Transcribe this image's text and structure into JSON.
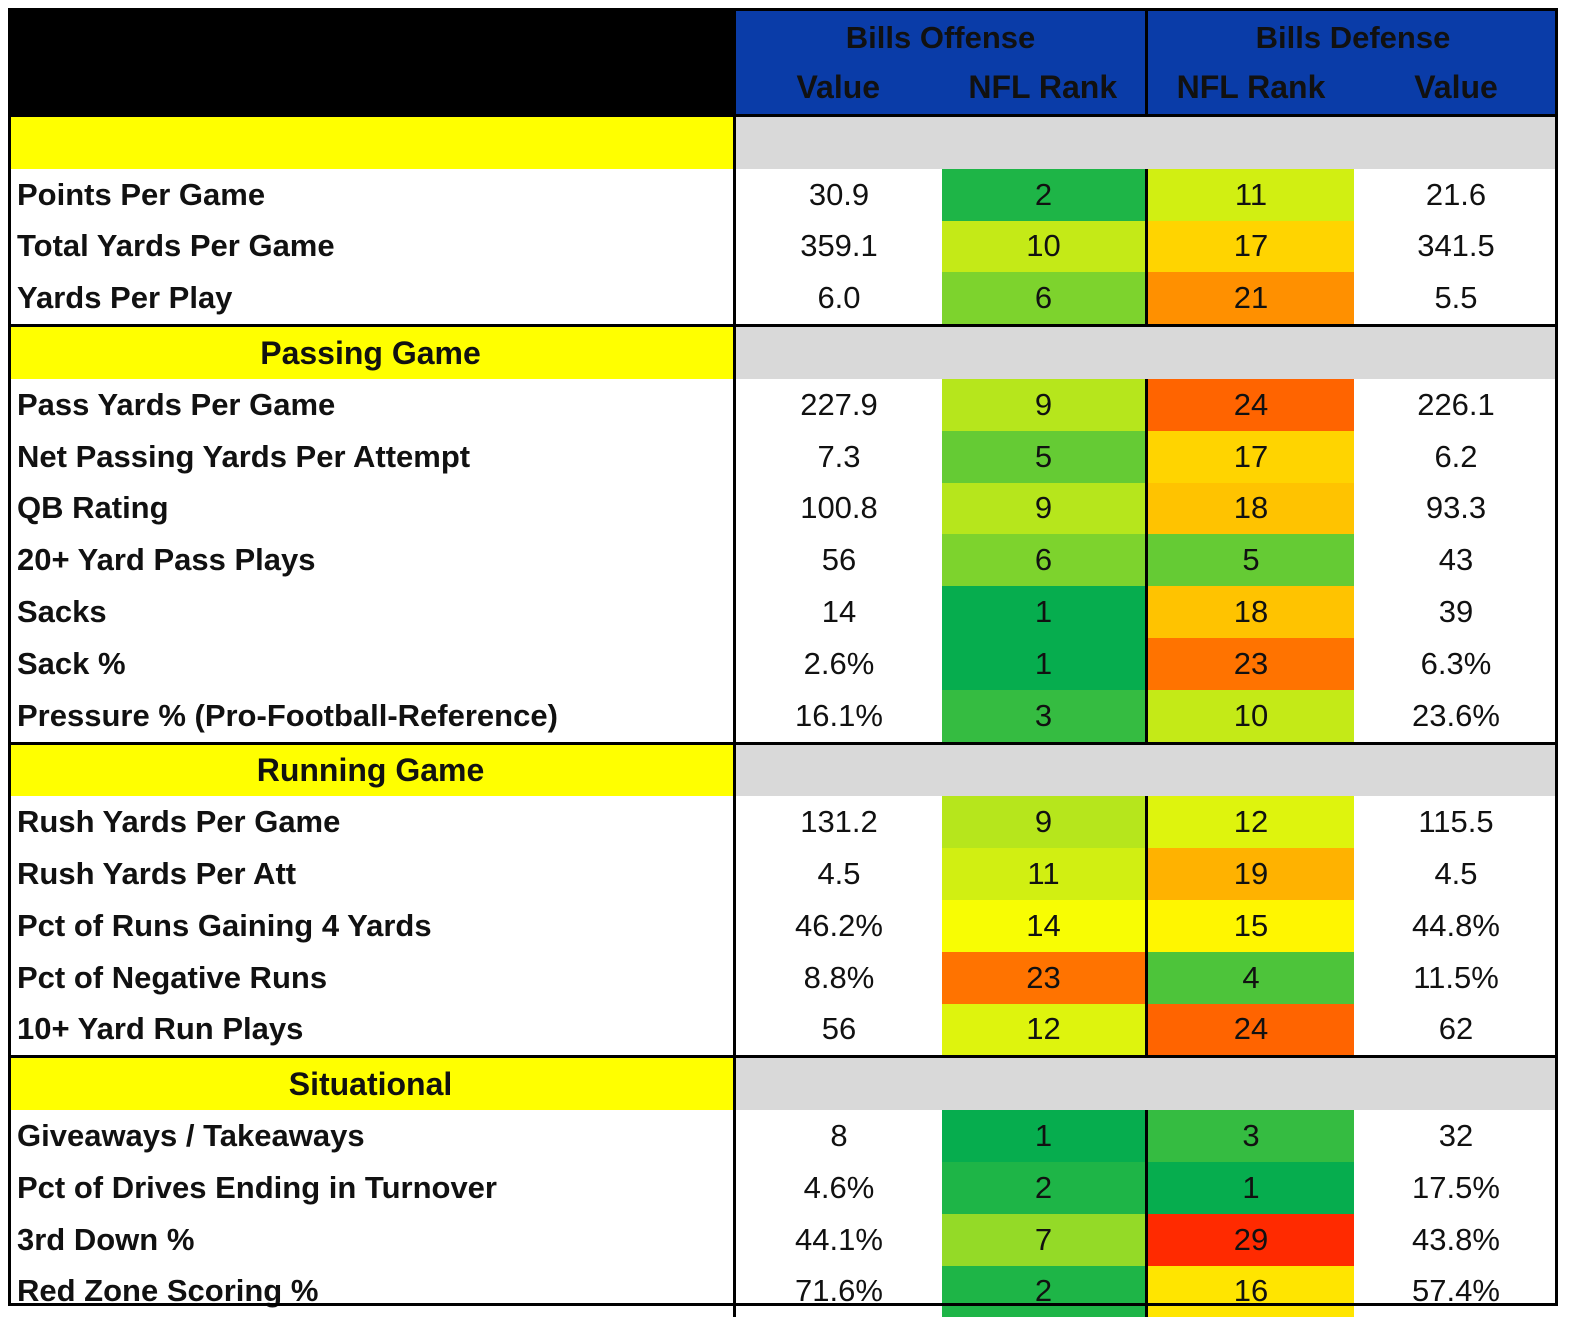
{
  "chart_data": {
    "type": "table",
    "title": "",
    "groups": [
      {
        "name": "Bills Offense",
        "columns": [
          "Value",
          "NFL Rank"
        ]
      },
      {
        "name": "Bills Defense",
        "columns": [
          "NFL Rank",
          "Value"
        ]
      }
    ],
    "sections": [
      {
        "name": "",
        "rows": [
          {
            "label": "Points Per Game",
            "off_value": "30.9",
            "off_rank": 2,
            "def_rank": 11,
            "def_value": "21.6"
          },
          {
            "label": "Total Yards Per Game",
            "off_value": "359.1",
            "off_rank": 10,
            "def_rank": 17,
            "def_value": "341.5"
          },
          {
            "label": "Yards Per Play",
            "off_value": "6.0",
            "off_rank": 6,
            "def_rank": 21,
            "def_value": "5.5"
          }
        ]
      },
      {
        "name": "Passing Game",
        "rows": [
          {
            "label": "Pass Yards Per Game",
            "off_value": "227.9",
            "off_rank": 9,
            "def_rank": 24,
            "def_value": "226.1"
          },
          {
            "label": "Net Passing Yards Per Attempt",
            "off_value": "7.3",
            "off_rank": 5,
            "def_rank": 17,
            "def_value": "6.2"
          },
          {
            "label": "QB Rating",
            "off_value": "100.8",
            "off_rank": 9,
            "def_rank": 18,
            "def_value": "93.3"
          },
          {
            "label": "20+ Yard Pass Plays",
            "off_value": "56",
            "off_rank": 6,
            "def_rank": 5,
            "def_value": "43"
          },
          {
            "label": "Sacks",
            "off_value": "14",
            "off_rank": 1,
            "def_rank": 18,
            "def_value": "39"
          },
          {
            "label": "Sack %",
            "off_value": "2.6%",
            "off_rank": 1,
            "def_rank": 23,
            "def_value": "6.3%"
          },
          {
            "label": "Pressure % (Pro-Football-Reference)",
            "off_value": "16.1%",
            "off_rank": 3,
            "def_rank": 10,
            "def_value": "23.6%"
          }
        ]
      },
      {
        "name": "Running Game",
        "rows": [
          {
            "label": "Rush Yards Per Game",
            "off_value": "131.2",
            "off_rank": 9,
            "def_rank": 12,
            "def_value": "115.5"
          },
          {
            "label": "Rush Yards Per Att",
            "off_value": "4.5",
            "off_rank": 11,
            "def_rank": 19,
            "def_value": "4.5"
          },
          {
            "label": "Pct of Runs Gaining 4 Yards",
            "off_value": "46.2%",
            "off_rank": 14,
            "def_rank": 15,
            "def_value": "44.8%"
          },
          {
            "label": "Pct of Negative Runs",
            "off_value": "8.8%",
            "off_rank": 23,
            "def_rank": 4,
            "def_value": "11.5%"
          },
          {
            "label": "10+ Yard Run Plays",
            "off_value": "56",
            "off_rank": 12,
            "def_rank": 24,
            "def_value": "62"
          }
        ]
      },
      {
        "name": "Situational",
        "rows": [
          {
            "label": "Giveaways / Takeaways",
            "off_value": "8",
            "off_rank": 1,
            "def_rank": 3,
            "def_value": "32"
          },
          {
            "label": "Pct of Drives Ending in Turnover",
            "off_value": "4.6%",
            "off_rank": 2,
            "def_rank": 1,
            "def_value": "17.5%"
          },
          {
            "label": "3rd Down %",
            "off_value": "44.1%",
            "off_rank": 7,
            "def_rank": 29,
            "def_value": "43.8%"
          },
          {
            "label": "Red Zone Scoring %",
            "off_value": "71.6%",
            "off_rank": 2,
            "def_rank": 16,
            "def_value": "57.4%"
          }
        ]
      }
    ],
    "color_scale": {
      "type": "rank",
      "min_rank": 1,
      "max_rank": 32,
      "stops": [
        "#06ad4e",
        "#a6e022",
        "#ffff00",
        "#ff8c00",
        "#ff2a00"
      ]
    }
  },
  "colors": {
    "header_bg": "#0a3ca8",
    "section_bg": "#ffff00",
    "section_fill": "#d9d9d9",
    "corner_bg": "#000000"
  }
}
